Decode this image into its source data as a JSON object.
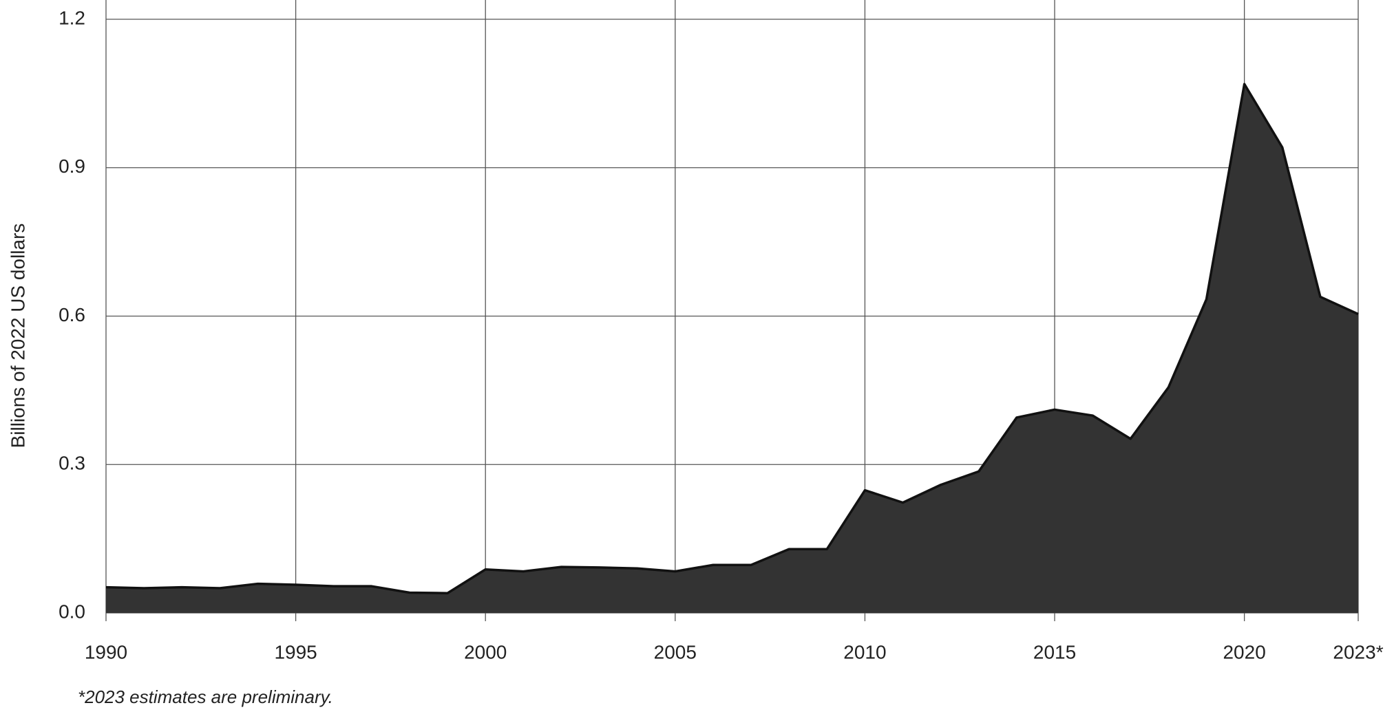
{
  "chart_data": {
    "type": "area",
    "y_label": "Billions of 2022 US dollars",
    "footnote": "*2023 estimates are preliminary.",
    "x": [
      1990,
      1991,
      1992,
      1993,
      1994,
      1995,
      1996,
      1997,
      1998,
      1999,
      2000,
      2001,
      2002,
      2003,
      2004,
      2005,
      2006,
      2007,
      2008,
      2009,
      2010,
      2011,
      2012,
      2013,
      2014,
      2015,
      2016,
      2017,
      2018,
      2019,
      2020,
      2021,
      2022,
      2023
    ],
    "values": [
      0.052,
      0.05,
      0.052,
      0.05,
      0.059,
      0.057,
      0.054,
      0.054,
      0.041,
      0.04,
      0.088,
      0.084,
      0.093,
      0.092,
      0.09,
      0.084,
      0.097,
      0.097,
      0.129,
      0.129,
      0.248,
      0.223,
      0.259,
      0.286,
      0.395,
      0.411,
      0.399,
      0.352,
      0.456,
      0.634,
      1.069,
      0.941,
      0.639,
      0.604
    ],
    "color": "#333333",
    "xlim": [
      1990,
      2023
    ],
    "xticks": [
      1990,
      1995,
      2000,
      2005,
      2010,
      2015,
      2020,
      {
        "value": 2023,
        "label": "2023*"
      }
    ],
    "ylim": [
      0,
      1.2
    ],
    "yticks": [
      {
        "value": 0,
        "label": "0.0"
      },
      0.3,
      0.6,
      0.9,
      1.2
    ],
    "grid": true
  }
}
